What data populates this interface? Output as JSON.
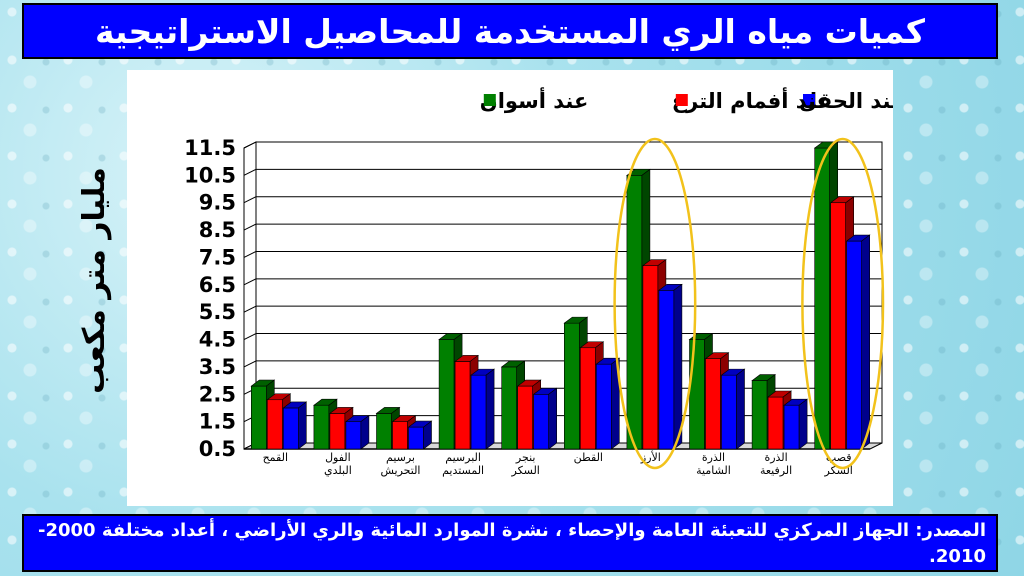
{
  "slide": {
    "title": "كميات مياه الري المستخدمة للمحاصيل الاستراتيجية",
    "source": "المصدر: الجهاز المركزي للتعبئة العامة والإحصاء ، نشرة الموارد المائية والري الأراضي ، أعداد مختلفة 2000-2010."
  },
  "colors": {
    "background": "#a9e2ee",
    "banner": "#0000ff",
    "highlight_ellipse": "#f2c21b"
  },
  "chart_data": {
    "type": "bar",
    "title": "",
    "xlabel": "",
    "ylabel": "مليار متر مكعب",
    "ylim": [
      0.5,
      11.5
    ],
    "yticks": [
      "0.5",
      "1.5",
      "2.5",
      "3.5",
      "4.5",
      "5.5",
      "6.5",
      "7.5",
      "8.5",
      "9.5",
      "10.5",
      "11.5"
    ],
    "legend_position": "top",
    "categories": [
      [
        "القمح"
      ],
      [
        "الفول",
        "البلدي"
      ],
      [
        "برسيم",
        "التحريش"
      ],
      [
        "البرسيم",
        "المستديم"
      ],
      [
        "بنجر",
        "السكر"
      ],
      [
        "القطن"
      ],
      [
        "الأرز"
      ],
      [
        "الذرة",
        "الشامية"
      ],
      [
        "الذرة",
        "الرفيعة"
      ],
      [
        "قصب",
        "السكر"
      ]
    ],
    "series": [
      {
        "name": "عند أسوان",
        "color": "#008000",
        "values": [
          2.8,
          2.1,
          1.8,
          4.5,
          3.5,
          5.1,
          10.5,
          4.5,
          3.0,
          11.5
        ]
      },
      {
        "name": "عند أفمام الترع",
        "color": "#ff0000",
        "values": [
          2.3,
          1.8,
          1.5,
          3.7,
          2.8,
          4.2,
          7.2,
          3.8,
          2.4,
          9.5
        ]
      },
      {
        "name": "عند الحقل",
        "color": "#0000ff",
        "values": [
          2.0,
          1.5,
          1.3,
          3.2,
          2.5,
          3.6,
          6.3,
          3.2,
          2.1,
          8.1
        ]
      }
    ],
    "highlighted_categories": [
      6,
      9
    ]
  }
}
